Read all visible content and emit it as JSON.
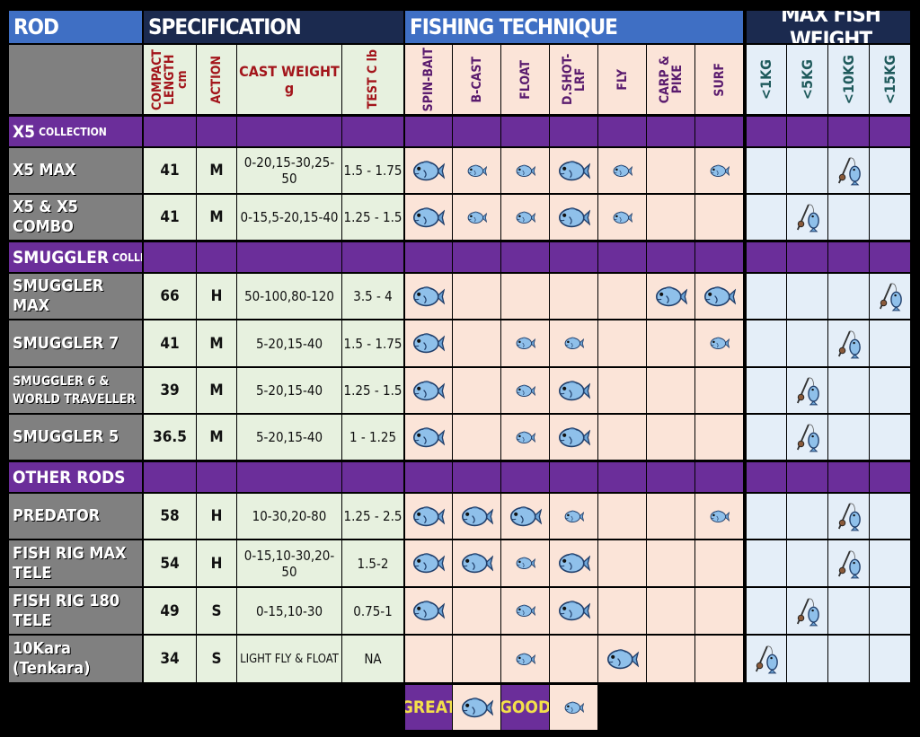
{
  "header": {
    "rod": "ROD",
    "specification": "SPECIFICATION",
    "fishing_technique": "FISHING TECHNIQUE",
    "max_fish_weight": "MAX FISH WEIGHT"
  },
  "spec_columns": [
    [
      "COMPACT",
      "LENGTH cm"
    ],
    [
      "ACTION"
    ],
    [
      "CAST WEIGHT g"
    ],
    [
      "TEST C lb"
    ]
  ],
  "technique_columns": [
    [
      "SPIN-BAIT"
    ],
    [
      "B-CAST"
    ],
    [
      "FLOAT"
    ],
    [
      "D.SHOT-LRF"
    ],
    [
      "FLY"
    ],
    [
      "CARP &",
      "PIKE"
    ],
    [
      "SURF"
    ]
  ],
  "weight_columns": [
    "<1KG",
    "<5KG",
    "<10KG",
    "<15KG"
  ],
  "groups": [
    {
      "name": "X5",
      "tag": "COLLECTION",
      "rods": [
        {
          "name": "X5 MAX",
          "length": 41,
          "action": "M",
          "cast_weight": "0-20,15-30,25-50",
          "test": "1.5 - 1.75",
          "technique": [
            "GREAT",
            "GOOD",
            "GOOD",
            "GREAT",
            "GOOD",
            null,
            "GOOD"
          ],
          "max_weight": "<10KG"
        },
        {
          "name": "X5 & X5 COMBO",
          "length": 41,
          "action": "M",
          "cast_weight": "0-15,5-20,15-40",
          "test": "1.25 - 1.5",
          "technique": [
            "GREAT",
            "GOOD",
            "GOOD",
            "GREAT",
            "GOOD",
            null,
            null
          ],
          "max_weight": "<5KG"
        }
      ]
    },
    {
      "name": "SMUGGLER",
      "tag": "COLLECTION",
      "rods": [
        {
          "name": "SMUGGLER MAX",
          "length": 66,
          "action": "H",
          "cast_weight": "50-100,80-120",
          "test": "3.5 - 4",
          "technique": [
            "GREAT",
            null,
            null,
            null,
            null,
            "GREAT",
            "GREAT"
          ],
          "max_weight": "<15KG"
        },
        {
          "name": "SMUGGLER 7",
          "length": 41,
          "action": "M",
          "cast_weight": "5-20,15-40",
          "test": "1.5 - 1.75",
          "technique": [
            "GREAT",
            null,
            "GOOD",
            "GOOD",
            null,
            null,
            "GOOD"
          ],
          "max_weight": "<10KG"
        },
        {
          "name": "SMUGGLER 6 & WORLD TRAVELLER",
          "length": 39,
          "action": "M",
          "cast_weight": "5-20,15-40",
          "test": "1.25 - 1.5",
          "technique": [
            "GREAT",
            null,
            "GOOD",
            "GREAT",
            null,
            null,
            null
          ],
          "max_weight": "<5KG"
        },
        {
          "name": "SMUGGLER 5",
          "length": 36.5,
          "action": "M",
          "cast_weight": "5-20,15-40",
          "test": "1 - 1.25",
          "technique": [
            "GREAT",
            null,
            "GOOD",
            "GREAT",
            null,
            null,
            null
          ],
          "max_weight": "<5KG"
        }
      ]
    },
    {
      "name": "OTHER RODS",
      "rods": [
        {
          "name": "PREDATOR",
          "length": 58,
          "action": "H",
          "cast_weight": "10-30,20-80",
          "test": "1.25 - 2.5",
          "technique": [
            "GREAT",
            "GREAT",
            "GREAT",
            "GOOD",
            null,
            null,
            "GOOD"
          ],
          "max_weight": "<10KG"
        },
        {
          "name": "FISH RIG MAX TELE",
          "length": 54,
          "action": "H",
          "cast_weight": "0-15,10-30,20-50",
          "test": "1.5-2",
          "technique": [
            "GREAT",
            "GREAT",
            "GOOD",
            "GREAT",
            null,
            null,
            null
          ],
          "max_weight": "<10KG"
        },
        {
          "name": "FISH RIG 180 TELE",
          "length": 49,
          "action": "S",
          "cast_weight": "0-15,10-30",
          "test": "0.75-1",
          "technique": [
            "GREAT",
            null,
            "GOOD",
            "GREAT",
            null,
            null,
            null
          ],
          "max_weight": "<5KG"
        },
        {
          "name": "10Kara (Tenkara)",
          "length": 34,
          "action": "S",
          "cast_weight": "LIGHT FLY & FLOAT",
          "test": "NA",
          "technique": [
            null,
            null,
            "GOOD",
            null,
            "GREAT",
            null,
            null
          ],
          "max_weight": "<1KG"
        }
      ]
    }
  ],
  "legend": [
    "GREAT",
    "GOOD"
  ]
}
